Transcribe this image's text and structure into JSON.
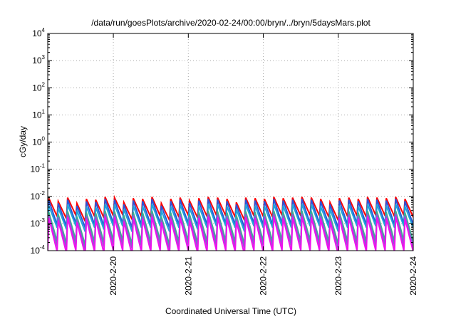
{
  "chart_data": {
    "type": "line",
    "title": "/data/run/goesPlots/archive/2020-02-24/00:00/bryn/../bryn/5daysMars.plot",
    "xlabel": "Coordinated Universal Time (UTC)",
    "ylabel": "cGy/day",
    "y_scale": "log",
    "ylim": [
      0.0001,
      10000
    ],
    "y_ticks": [
      {
        "value": 0.0001,
        "base": "10",
        "exp": "-4"
      },
      {
        "value": 0.001,
        "base": "10",
        "exp": "-3"
      },
      {
        "value": 0.01,
        "base": "10",
        "exp": "-2"
      },
      {
        "value": 0.1,
        "base": "10",
        "exp": "-1"
      },
      {
        "value": 1,
        "base": "10",
        "exp": "0"
      },
      {
        "value": 10,
        "base": "10",
        "exp": "1"
      },
      {
        "value": 100,
        "base": "10",
        "exp": "2"
      },
      {
        "value": 1000,
        "base": "10",
        "exp": "3"
      },
      {
        "value": 10000,
        "base": "10",
        "exp": "4"
      }
    ],
    "xlim": [
      "2020-02-19 03:00",
      "2020-02-24 00:00"
    ],
    "x_ticks": [
      "2020-2-20",
      "2020-2-21",
      "2020-2-22",
      "2020-2-23",
      "2020-2-24"
    ],
    "x_tick_values": [
      "2020-02-20 00:00",
      "2020-02-21 00:00",
      "2020-02-22 00:00",
      "2020-02-23 00:00",
      "2020-02-24 00:00"
    ],
    "grid": true,
    "grid_style": "dotted",
    "period_hours": 3,
    "series": [
      {
        "color": "#ff0000",
        "peaks": [
          0.0085,
          0.0065,
          0.009,
          0.0055,
          0.008,
          0.0075,
          0.0095,
          0.009,
          0.006,
          0.0085,
          0.008,
          0.0095,
          0.0055,
          0.008,
          0.009,
          0.007,
          0.0085,
          0.0095,
          0.009,
          0.008,
          0.006,
          0.009,
          0.0085,
          0.008,
          0.0095,
          0.0085,
          0.009,
          0.0095,
          0.009,
          0.008,
          0.006,
          0.0085,
          0.009,
          0.008,
          0.0095,
          0.009,
          0.0085,
          0.0095,
          0.008,
          0.009
        ],
        "troughs": [
          0.0018,
          0.0015,
          0.002,
          0.0012,
          0.0018,
          0.0016,
          0.0019,
          0.0021,
          0.0014,
          0.0018,
          0.0017,
          0.0019,
          0.0013,
          0.0017,
          0.002,
          0.0016,
          0.0018,
          0.002,
          0.0019,
          0.0017,
          0.0013,
          0.0019,
          0.0018,
          0.0017,
          0.002,
          0.0018,
          0.0019,
          0.002,
          0.0019,
          0.0017,
          0.0013,
          0.0018,
          0.0019,
          0.0017,
          0.002,
          0.0019,
          0.0018,
          0.002,
          0.0017,
          0.0019
        ]
      },
      {
        "color": "#2b55d8",
        "peaks": [
          0.007,
          0.0055,
          0.0075,
          0.0045,
          0.0065,
          0.0062,
          0.008,
          0.0075,
          0.005,
          0.007,
          0.0066,
          0.008,
          0.0045,
          0.0066,
          0.0075,
          0.0058,
          0.007,
          0.008,
          0.0075,
          0.0066,
          0.005,
          0.0075,
          0.007,
          0.0066,
          0.008,
          0.007,
          0.0075,
          0.008,
          0.0075,
          0.0066,
          0.005,
          0.007,
          0.0075,
          0.0066,
          0.008,
          0.0075,
          0.007,
          0.008,
          0.0066,
          0.0075
        ],
        "troughs": [
          0.0009,
          0.0008,
          0.001,
          0.0007,
          0.0009,
          0.0008,
          0.001,
          0.001,
          0.0007,
          0.0009,
          0.0009,
          0.001,
          0.0007,
          0.0009,
          0.001,
          0.0008,
          0.0009,
          0.001,
          0.001,
          0.0009,
          0.0007,
          0.001,
          0.0009,
          0.0009,
          0.001,
          0.0009,
          0.001,
          0.001,
          0.001,
          0.0009,
          0.0007,
          0.0009,
          0.001,
          0.0009,
          0.001,
          0.001,
          0.0009,
          0.001,
          0.0009,
          0.001
        ]
      },
      {
        "color": "#1ea5d8",
        "peaks": [
          0.0045,
          0.0038,
          0.005,
          0.003,
          0.0042,
          0.004,
          0.0052,
          0.005,
          0.0034,
          0.0045,
          0.0043,
          0.0052,
          0.003,
          0.0043,
          0.005,
          0.0038,
          0.0045,
          0.0052,
          0.005,
          0.0043,
          0.0034,
          0.005,
          0.0045,
          0.0043,
          0.0052,
          0.0045,
          0.005,
          0.0052,
          0.005,
          0.0043,
          0.0034,
          0.0045,
          0.005,
          0.0043,
          0.0052,
          0.005,
          0.0045,
          0.0052,
          0.0043,
          0.005
        ],
        "troughs": [
          0.0007,
          0.0006,
          0.0008,
          0.0005,
          0.0007,
          0.0006,
          0.0008,
          0.0008,
          0.0005,
          0.0007,
          0.0007,
          0.0008,
          0.0005,
          0.0007,
          0.0008,
          0.0006,
          0.0007,
          0.0008,
          0.0008,
          0.0007,
          0.0005,
          0.0008,
          0.0007,
          0.0007,
          0.0008,
          0.0007,
          0.0008,
          0.0008,
          0.0008,
          0.0007,
          0.0005,
          0.0007,
          0.0008,
          0.0007,
          0.0008,
          0.0008,
          0.0007,
          0.0008,
          0.0007,
          0.0008
        ]
      },
      {
        "color": "#3bb08f",
        "peaks": [
          0.0026,
          0.0022,
          0.0028,
          0.0018,
          0.0025,
          0.0024,
          0.0029,
          0.0028,
          0.002,
          0.0026,
          0.0025,
          0.0029,
          0.0018,
          0.0025,
          0.0028,
          0.0022,
          0.0026,
          0.0029,
          0.0028,
          0.0025,
          0.002,
          0.0028,
          0.0026,
          0.0025,
          0.0029,
          0.0026,
          0.0028,
          0.0029,
          0.0028,
          0.0025,
          0.002,
          0.0026,
          0.0028,
          0.0025,
          0.0029,
          0.0028,
          0.0026,
          0.0029,
          0.0025,
          0.0028
        ],
        "troughs": [
          0.00022,
          0.00018,
          0.00024,
          0.00016,
          0.00021,
          0.0002,
          0.00024,
          0.00023,
          0.00017,
          0.00022,
          0.00021,
          0.00024,
          0.00016,
          0.00021,
          0.00023,
          0.00019,
          0.00022,
          0.00024,
          0.00023,
          0.00021,
          0.00017,
          0.00023,
          0.00022,
          0.00021,
          0.00024,
          0.00022,
          0.00023,
          0.00024,
          0.00023,
          0.00021,
          0.00017,
          0.00022,
          0.00023,
          0.00021,
          0.00024,
          0.00023,
          0.00022,
          0.00024,
          0.00021,
          0.00023
        ]
      },
      {
        "color": "#8a5cd0",
        "peaks": [
          0.002,
          0.0017,
          0.0022,
          0.0014,
          0.0019,
          0.0018,
          0.0023,
          0.0022,
          0.0015,
          0.002,
          0.0019,
          0.0023,
          0.0014,
          0.0019,
          0.0022,
          0.0017,
          0.002,
          0.0023,
          0.0022,
          0.0019,
          0.0015,
          0.0022,
          0.002,
          0.0019,
          0.0023,
          0.002,
          0.0022,
          0.0023,
          0.0022,
          0.0019,
          0.0015,
          0.002,
          0.0022,
          0.0019,
          0.0023,
          0.0022,
          0.002,
          0.0023,
          0.0019,
          0.0022
        ],
        "troughs": [
          0.00015,
          0.00013,
          0.00016,
          0.00011,
          0.00014,
          0.00014,
          0.00016,
          0.00016,
          0.00012,
          0.00015,
          0.00014,
          0.00016,
          0.00011,
          0.00014,
          0.00016,
          0.00013,
          0.00015,
          0.00016,
          0.00016,
          0.00014,
          0.00012,
          0.00016,
          0.00015,
          0.00014,
          0.00016,
          0.00015,
          0.00016,
          0.00016,
          0.00016,
          0.00014,
          0.00012,
          0.00015,
          0.00016,
          0.00014,
          0.00016,
          0.00016,
          0.00015,
          0.00016,
          0.00014,
          0.00016
        ]
      },
      {
        "color": "#ee11ee",
        "peaks": [
          0.0016,
          0.0013,
          0.0017,
          0.0011,
          0.0015,
          0.0014,
          0.0018,
          0.0017,
          0.0012,
          0.0016,
          0.0015,
          0.0018,
          0.0011,
          0.0015,
          0.0017,
          0.0013,
          0.0016,
          0.0018,
          0.0017,
          0.0015,
          0.0012,
          0.0017,
          0.0016,
          0.0015,
          0.0018,
          0.0016,
          0.0017,
          0.0018,
          0.0017,
          0.0015,
          0.0012,
          0.0016,
          0.0017,
          0.0015,
          0.0018,
          0.0017,
          0.0016,
          0.0018,
          0.0015,
          0.0017
        ],
        "troughs": [
          9e-05,
          8e-05,
          0.0001,
          7e-05,
          9e-05,
          8e-05,
          0.0001,
          0.0001,
          7e-05,
          9e-05,
          9e-05,
          0.0001,
          7e-05,
          9e-05,
          0.0001,
          8e-05,
          9e-05,
          0.0001,
          0.0001,
          9e-05,
          7e-05,
          0.0001,
          9e-05,
          9e-05,
          0.0001,
          9e-05,
          0.0001,
          0.0001,
          0.0001,
          9e-05,
          7e-05,
          9e-05,
          0.0001,
          9e-05,
          0.0001,
          0.0001,
          9e-05,
          0.0001,
          9e-05,
          0.0001
        ]
      }
    ]
  }
}
